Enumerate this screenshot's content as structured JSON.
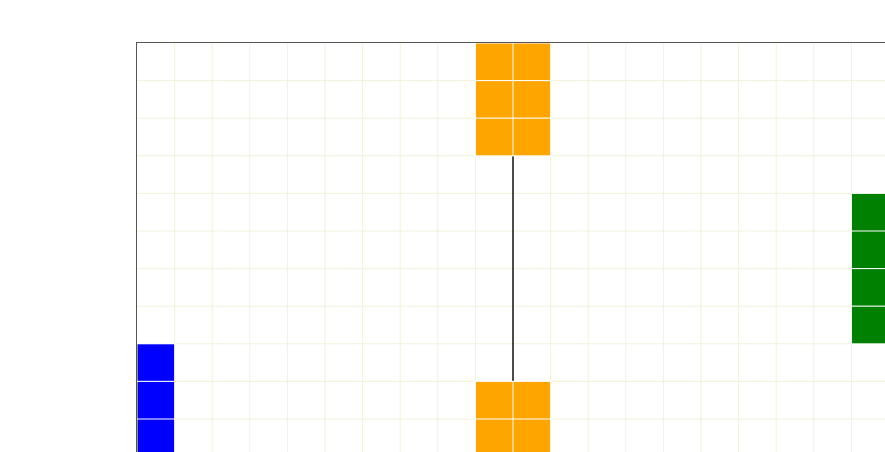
{
  "board": {
    "columns": 20,
    "rows": 11,
    "grid_color": "#f0f2dc",
    "cell_border_color": "#ffffff"
  },
  "pieces": [
    {
      "name": "blue-piece",
      "color": "#0000ff",
      "cells": [
        [
          0,
          8
        ],
        [
          0,
          9
        ],
        [
          0,
          10
        ]
      ]
    },
    {
      "name": "orange-piece-top",
      "color": "#ffa500",
      "cells": [
        [
          9,
          0
        ],
        [
          10,
          0
        ],
        [
          9,
          1
        ],
        [
          10,
          1
        ],
        [
          9,
          2
        ],
        [
          10,
          2
        ]
      ]
    },
    {
      "name": "orange-piece-bottom",
      "color": "#ffa500",
      "cells": [
        [
          9,
          9
        ],
        [
          10,
          9
        ],
        [
          9,
          10
        ],
        [
          10,
          10
        ]
      ]
    },
    {
      "name": "green-piece",
      "color": "#008000",
      "cells": [
        [
          19,
          4
        ],
        [
          19,
          5
        ],
        [
          19,
          6
        ],
        [
          19,
          7
        ]
      ]
    }
  ],
  "connector": {
    "color": "#000000",
    "column_edge": 10,
    "from_row_edge": 3,
    "to_row_edge": 9
  }
}
